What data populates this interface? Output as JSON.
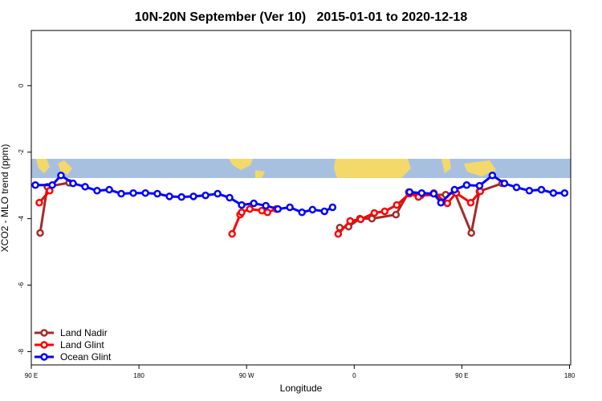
{
  "chart_data": {
    "type": "line",
    "title": "10N-20N September (Ver 10)   2015-01-01 to 2020-12-18",
    "xlabel": "Longitude",
    "ylabel": "XCO2 - MLO trend (ppm)",
    "xlim": [
      90,
      541
    ],
    "ylim": [
      -8.4,
      1.66
    ],
    "xticks": [
      {
        "value": 90,
        "label": "90 E"
      },
      {
        "value": 180,
        "label": "180"
      },
      {
        "value": 270,
        "label": "90 W"
      },
      {
        "value": 360,
        "label": "0"
      },
      {
        "value": 450,
        "label": "90 E"
      },
      {
        "value": 540,
        "label": "180"
      }
    ],
    "yticks": [
      0,
      -2,
      -4,
      -6,
      -8
    ],
    "legend": "bottom-left",
    "series": [
      {
        "name": "Land Nadir",
        "color": "#a52a2a",
        "x": [
          97.4,
          103.4,
          121.6,
          null,
          347.9,
          355.3,
          364.7,
          374.8,
          394.9,
          405.6,
          415.7,
          436.5,
          443.9,
          457.9,
          464.7,
          483.6
        ],
        "values": [
          -4.43,
          -3.04,
          -2.92,
          null,
          -4.27,
          -4.24,
          -4.0,
          -4.0,
          -3.88,
          -3.2,
          -3.3,
          -3.28,
          -3.2,
          -4.43,
          -3.18,
          -2.94
        ]
      },
      {
        "name": "Land Glint",
        "color": "#ff0000",
        "x": [
          96.7,
          105.4,
          null,
          257.9,
          264.6,
          265.9,
          272.7,
          282.8,
          287.5,
          294.8,
          null,
          346.6,
          356.6,
          365.4,
          376.8,
          385.5,
          395.6,
          406.3,
          413.7,
          426.5,
          437.9,
          445.3,
          457.4,
          465.4
        ],
        "values": [
          -3.52,
          -3.16,
          null,
          -4.46,
          -3.88,
          -3.81,
          -3.71,
          -3.76,
          -3.81,
          -3.71,
          null,
          -4.46,
          -4.07,
          -4.02,
          -3.83,
          -3.78,
          -3.59,
          -3.25,
          -3.35,
          -3.23,
          -3.54,
          -3.23,
          -3.52,
          -3.18
        ]
      },
      {
        "name": "Ocean Glint",
        "color": "#0000ff",
        "x": [
          93.4,
          107.5,
          114.8,
          124.9,
          135,
          145,
          155.2,
          165.2,
          175.3,
          185.4,
          195.4,
          205.5,
          215.6,
          225.6,
          235.7,
          245.8,
          255.8,
          265.9,
          276,
          286.1,
          296.2,
          306.2,
          316.3,
          325.1,
          335.1,
          341.9,
          null,
          406.3,
          416.4,
          426.5,
          432.5,
          443.9,
          454,
          464.8,
          475.5,
          485.6,
          495.7,
          506.4,
          516.5,
          526.5,
          535.9
        ],
        "values": [
          -2.99,
          -2.99,
          -2.7,
          -2.94,
          -3.04,
          -3.16,
          -3.13,
          -3.25,
          -3.23,
          -3.23,
          -3.25,
          -3.33,
          -3.35,
          -3.33,
          -3.3,
          -3.25,
          -3.37,
          -3.59,
          -3.54,
          -3.61,
          -3.71,
          -3.66,
          -3.81,
          -3.73,
          -3.78,
          -3.66,
          null,
          -3.2,
          -3.23,
          -3.25,
          -3.52,
          -3.13,
          -2.99,
          -3.01,
          -2.7,
          -2.94,
          -3.06,
          -3.16,
          -3.13,
          -3.23,
          -3.23
        ]
      }
    ]
  }
}
